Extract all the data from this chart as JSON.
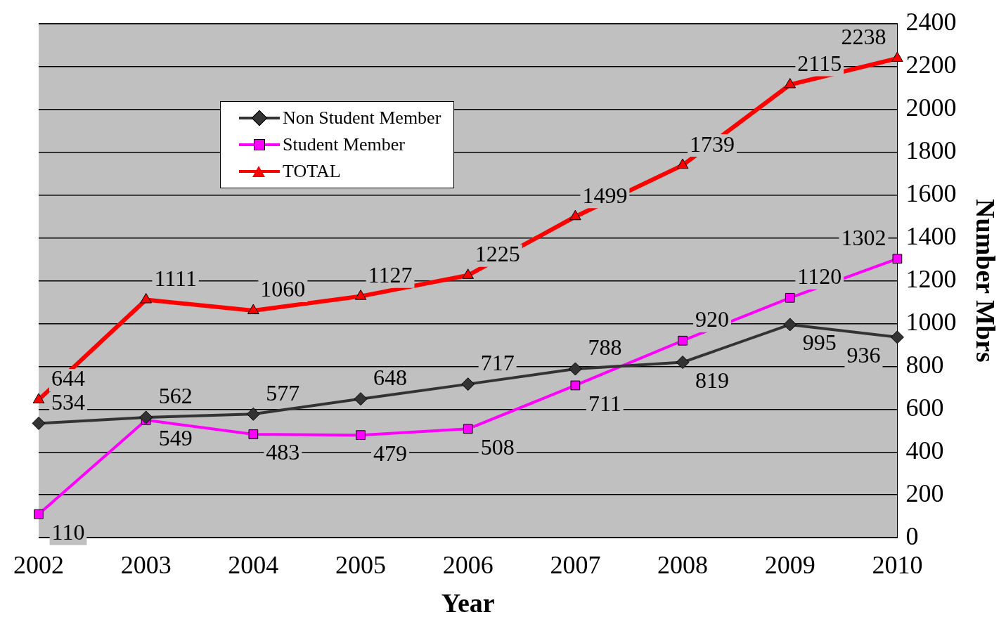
{
  "chart_data": {
    "type": "line",
    "xlabel": "Year",
    "y2label": "Number Mbrs",
    "categories": [
      "2002",
      "2003",
      "2004",
      "2005",
      "2006",
      "2007",
      "2008",
      "2009",
      "2010"
    ],
    "series": [
      {
        "name": "Non Student Member",
        "color": "#333333",
        "marker": "diamond",
        "values": [
          534,
          562,
          577,
          648,
          717,
          788,
          819,
          995,
          936
        ]
      },
      {
        "name": "Student Member",
        "color": "#ff00ff",
        "marker": "square",
        "values": [
          110,
          549,
          483,
          479,
          508,
          711,
          920,
          1120,
          1302
        ]
      },
      {
        "name": "TOTAL",
        "color": "#ff0000",
        "marker": "triangle",
        "values": [
          644,
          1111,
          1060,
          1127,
          1225,
          1499,
          1739,
          2115,
          2238
        ]
      }
    ],
    "y2lim": [
      0,
      2400
    ],
    "y2ticks": [
      0,
      200,
      400,
      600,
      800,
      1000,
      1200,
      1400,
      1600,
      1800,
      2000,
      2200,
      2400
    ],
    "grid": "y",
    "legend": "top left",
    "data_labels": true
  }
}
